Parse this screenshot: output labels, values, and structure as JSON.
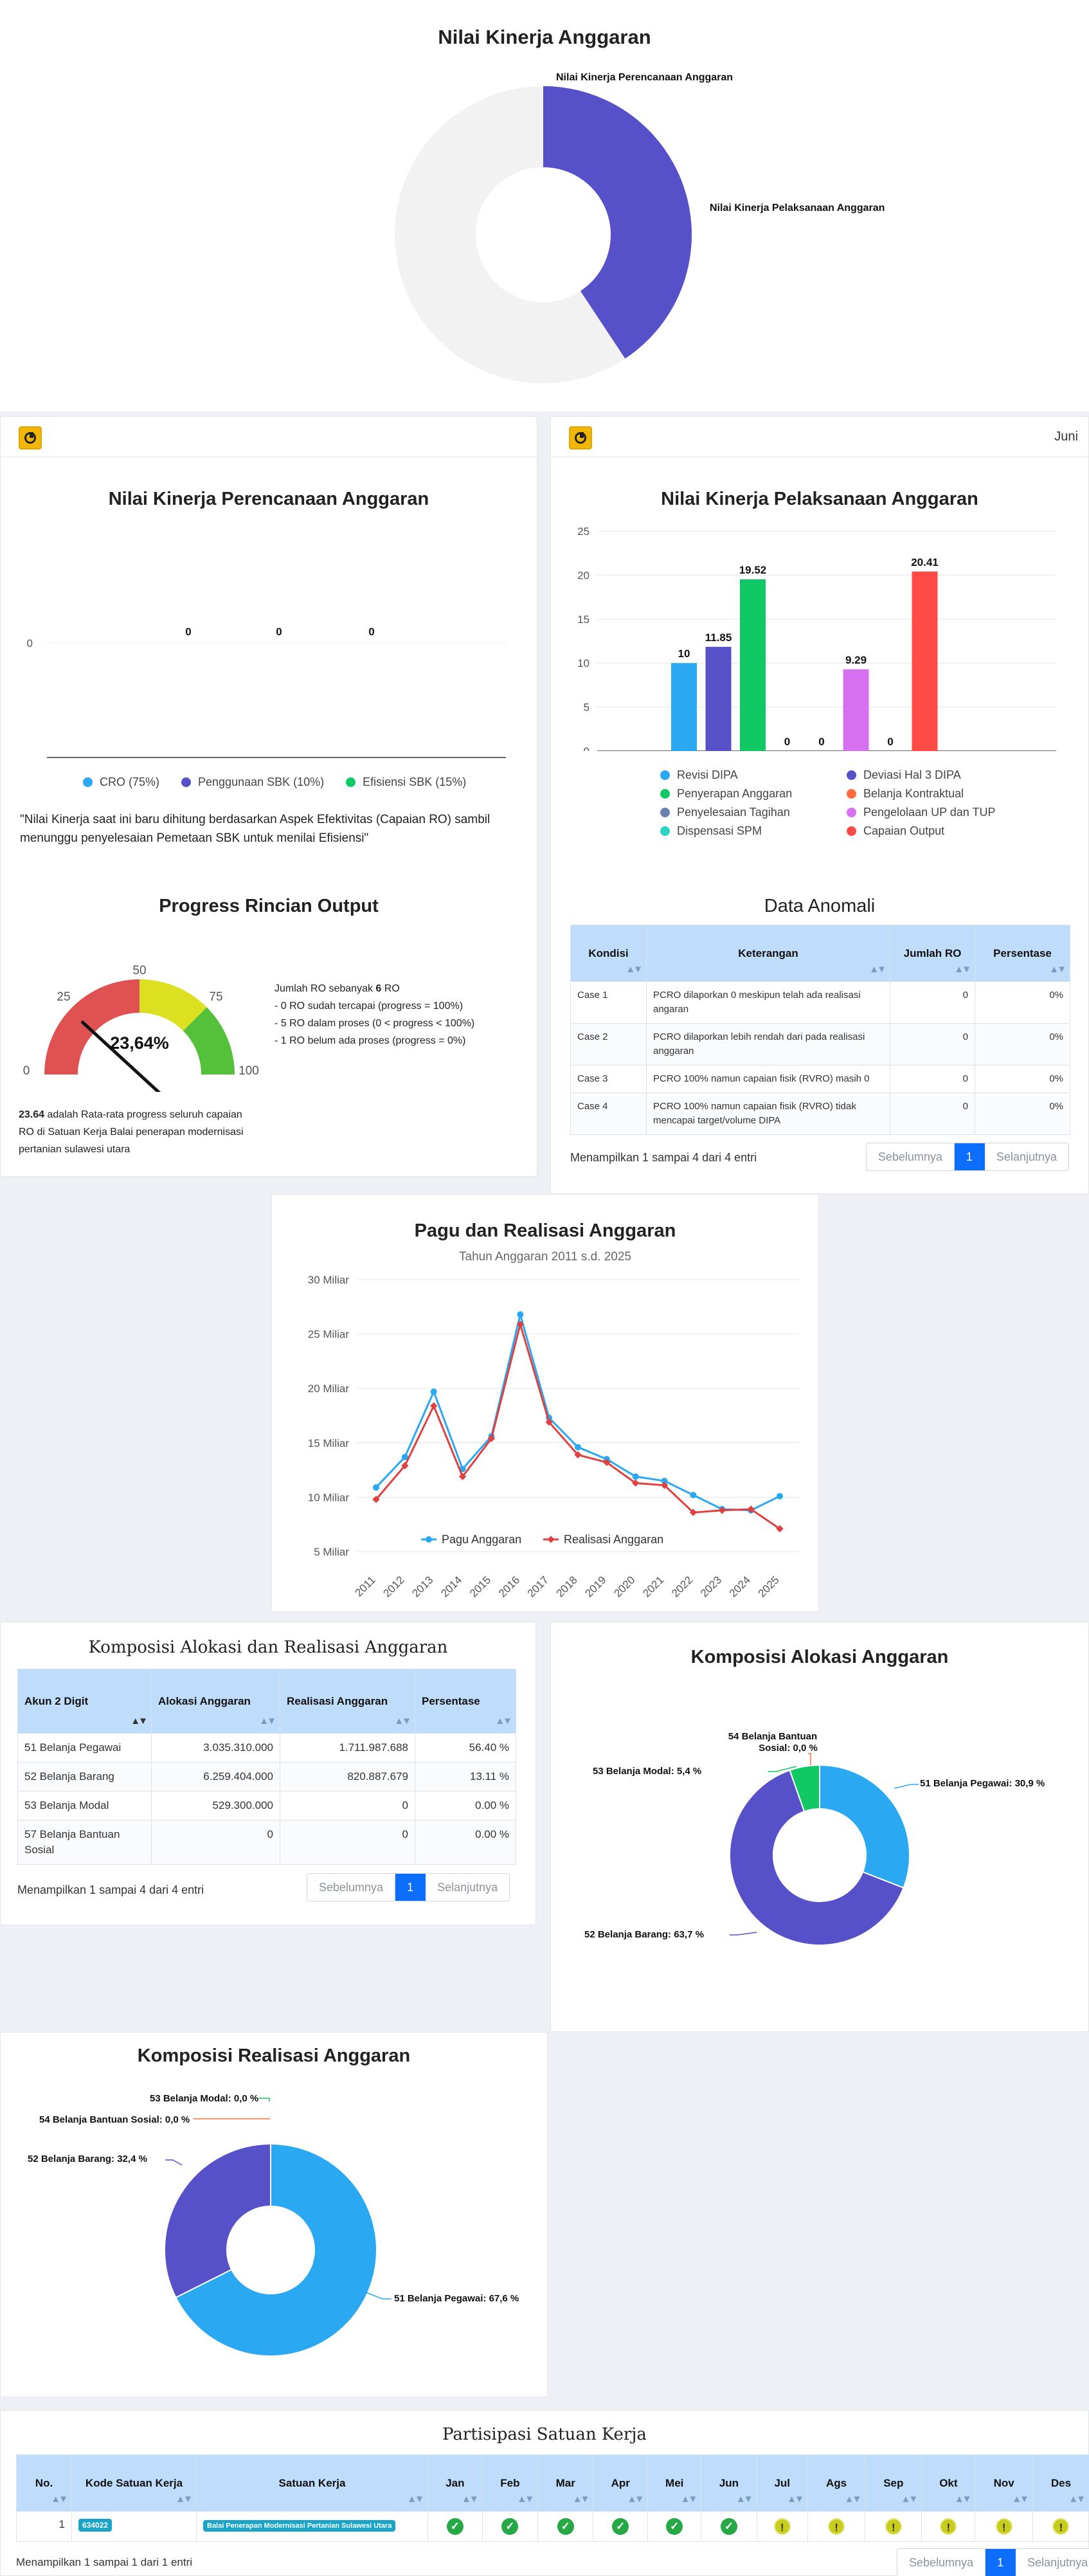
{
  "top_donut": {
    "title": "Nilai Kinerja Anggaran",
    "label_a": "Nilai Kinerja Perencanaan Anggaran",
    "label_b": "Nilai Kinerja Pelaksanaan Anggaran",
    "colors": {
      "filled": "#5650c9",
      "empty": "#f2f2f2"
    },
    "chart_data": {
      "type": "pie",
      "categories": [
        "Nilai Kinerja Perencanaan Anggaran",
        "Nilai Kinerja Pelaksanaan Anggaran"
      ],
      "values": [
        0,
        40.7
      ]
    }
  },
  "perencanaan": {
    "icon": "dashboard-icon",
    "title": "Nilai Kinerja Perencanaan Anggaran",
    "y_tick": "0",
    "bar_labels": [
      "0",
      "0",
      "0"
    ],
    "legend": [
      {
        "label": "CRO (75%)",
        "color": "#2aa8f2"
      },
      {
        "label": "Penggunaan SBK (10%)",
        "color": "#5650c9"
      },
      {
        "label": "Efisiensi SBK (15%)",
        "color": "#11c964"
      }
    ],
    "note": "\"Nilai Kinerja saat ini baru dihitung berdasarkan Aspek Efektivitas (Capaian RO) sambil menunggu penyelesaian Pemetaan SBK untuk menilai Efisiensi\"",
    "chart_data": {
      "type": "bar",
      "categories": [
        "CRO (75%)",
        "Penggunaan SBK (10%)",
        "Efisiensi SBK (15%)"
      ],
      "values": [
        0,
        0,
        0
      ]
    }
  },
  "pelaksanaan": {
    "icon": "dashboard-icon",
    "corner_text": "Juni",
    "title": "Nilai Kinerja Pelaksanaan Anggaran",
    "y_ticks": [
      "25",
      "20",
      "15",
      "10",
      "5",
      "0"
    ],
    "legend": [
      {
        "label": "Revisi DIPA",
        "color": "#2aa8f2"
      },
      {
        "label": "Deviasi Hal 3 DIPA",
        "color": "#5650c9"
      },
      {
        "label": "Penyerapan Anggaran",
        "color": "#11c964"
      },
      {
        "label": "Belanja Kontraktual",
        "color": "#ff6b3d"
      },
      {
        "label": "Penyelesaian Tagihan",
        "color": "#6b7fb0"
      },
      {
        "label": "Pengelolaan UP dan TUP",
        "color": "#d670f0"
      },
      {
        "label": "Dispensasi SPM",
        "color": "#2ed3c4"
      },
      {
        "label": "Capaian Output",
        "color": "#ff4b47"
      }
    ],
    "chart_data": {
      "type": "bar",
      "categories": [
        "Revisi DIPA",
        "Deviasi Hal 3 DIPA",
        "Penyerapan Anggaran",
        "Belanja Kontraktual",
        "Penyelesaian Tagihan",
        "Pengelolaan UP dan TUP",
        "Dispensasi SPM",
        "Capaian Output"
      ],
      "values": [
        10,
        11.85,
        19.52,
        0,
        0,
        9.29,
        0,
        20.41
      ],
      "value_labels": [
        "10",
        "11.85",
        "19.52",
        "0",
        "0",
        "9.29",
        "0",
        "20.41"
      ],
      "ylim": [
        0,
        25
      ]
    }
  },
  "progress": {
    "title": "Progress Rincian Output",
    "gauge_ticks": [
      "0",
      "25",
      "50",
      "75",
      "100"
    ],
    "value_text": "23,64%",
    "gauge_value": 23.64,
    "info_lines": [
      "Jumlah RO sebanyak",
      "6",
      "RO",
      "- 0 RO sudah tercapai (progress = 100%)",
      "- 5 RO dalam proses (0 < progress < 100%)",
      "- 1 RO belum ada proses (progress = 0%)"
    ],
    "footer_bold": "23.64",
    "footer_text": " adalah Rata-rata progress seluruh capaian RO di Satuan Kerja Balai penerapan modernisasi pertanian sulawesi utara"
  },
  "anomali": {
    "title": "Data Anomali",
    "headers": [
      "Kondisi",
      "Keterangan",
      "Jumlah RO",
      "Persentase"
    ],
    "rows": [
      [
        "Case 1",
        "PCRO dilaporkan 0 meskipun telah ada realisasi angaran",
        "0",
        "0%"
      ],
      [
        "Case 2",
        "PCRO dilaporkan lebih rendah dari pada realisasi anggaran",
        "0",
        "0%"
      ],
      [
        "Case 3",
        "PCRO 100% namun capaian fisik (RVRO) masih 0",
        "0",
        "0%"
      ],
      [
        "Case 4",
        "PCRO 100% namun capaian fisik (RVRO) tidak mencapai target/volume DIPA",
        "0",
        "0%"
      ]
    ],
    "info": "Menampilkan 1 sampai 4 dari 4 entri",
    "pager": [
      "Sebelumnya",
      "1",
      "Selanjutnya"
    ]
  },
  "pagu": {
    "title": "Pagu dan Realisasi Anggaran",
    "subtitle": "Tahun Anggaran 2011 s.d. 2025",
    "y_ticks": [
      "30 Miliar",
      "25 Miliar",
      "20 Miliar",
      "15 Miliar",
      "10 Miliar",
      "5 Miliar"
    ],
    "chart_data": {
      "type": "line",
      "x": [
        "2011",
        "2012",
        "2013",
        "2014",
        "2015",
        "2016",
        "2017",
        "2018",
        "2019",
        "2020",
        "2021",
        "2022",
        "2023",
        "2024",
        "2025"
      ],
      "series": [
        {
          "name": "Pagu Anggaran",
          "color": "#2aa8f2",
          "values": [
            10.9,
            13.7,
            19.7,
            12.6,
            15.6,
            26.8,
            17.3,
            14.6,
            13.5,
            11.9,
            11.5,
            10.2,
            8.9,
            8.8,
            10.1
          ]
        },
        {
          "name": "Realisasi Anggaran",
          "color": "#e0403f",
          "values": [
            9.8,
            12.9,
            18.4,
            11.9,
            15.4,
            25.9,
            16.9,
            13.9,
            13.2,
            11.3,
            11.1,
            8.6,
            8.8,
            8.9,
            7.1
          ]
        }
      ],
      "ylim": [
        5,
        30
      ]
    }
  },
  "komposisi_table": {
    "title": "Komposisi Alokasi dan Realisasi Anggaran",
    "headers": [
      "Akun 2 Digit",
      "Alokasi Anggaran",
      "Realisasi Anggaran",
      "Persentase"
    ],
    "rows": [
      [
        "51 Belanja Pegawai",
        "3.035.310.000",
        "1.711.987.688",
        "56.40 %"
      ],
      [
        "52 Belanja Barang",
        "6.259.404.000",
        "820.887.679",
        "13.11 %"
      ],
      [
        "53 Belanja Modal",
        "529.300.000",
        "0",
        "0.00 %"
      ],
      [
        "57 Belanja Bantuan Sosial",
        "0",
        "0",
        "0.00 %"
      ]
    ],
    "info": "Menampilkan 1 sampai 4 dari 4 entri",
    "pager": [
      "Sebelumnya",
      "1",
      "Selanjutnya"
    ]
  },
  "alokasi": {
    "title": "Komposisi Alokasi Anggaran",
    "labels": [
      "51 Belanja Pegawai: 30,9 %",
      "52 Belanja Barang: 63,7 %",
      "53 Belanja Modal: 5,4 %",
      "54 Belanja Bantuan",
      "Sosial: 0,0 %"
    ],
    "chart_data": {
      "type": "pie",
      "categories": [
        "51 Belanja Pegawai",
        "52 Belanja Barang",
        "53 Belanja Modal",
        "54 Belanja Bantuan Sosial"
      ],
      "values": [
        30.9,
        63.7,
        5.4,
        0.0
      ],
      "colors": [
        "#2aa8f2",
        "#5650c9",
        "#11c964",
        "#ff6b3d"
      ]
    }
  },
  "realisasi": {
    "title": "Komposisi Realisasi Anggaran",
    "labels": [
      "51 Belanja Pegawai: 67,6 %",
      "52 Belanja Barang: 32,4 %",
      "53 Belanja Modal: 0,0 %",
      "54 Belanja Bantuan Sosial: 0,0 %"
    ],
    "chart_data": {
      "type": "pie",
      "categories": [
        "51 Belanja Pegawai",
        "52 Belanja Barang",
        "53 Belanja Modal",
        "54 Belanja Bantuan Sosial"
      ],
      "values": [
        67.6,
        32.4,
        0.0,
        0.0
      ],
      "colors": [
        "#2aa8f2",
        "#5650c9",
        "#11c964",
        "#ff6b3d"
      ]
    }
  },
  "partisipasi": {
    "title": "Partisipasi Satuan Kerja",
    "headers": [
      "No.",
      "Kode Satuan Kerja",
      "Satuan Kerja",
      "Jan",
      "Feb",
      "Mar",
      "Apr",
      "Mei",
      "Jun",
      "Jul",
      "Ags",
      "Sep",
      "Okt",
      "Nov",
      "Des"
    ],
    "row": {
      "no": "1",
      "kode": "634022",
      "satker": "Balai Penerapan Modernisasi Pertanian Sulawesi Utara",
      "months": [
        "check",
        "check",
        "check",
        "check",
        "check",
        "check",
        "warn",
        "warn",
        "warn",
        "warn",
        "warn",
        "warn"
      ]
    },
    "info": "Menampilkan 1 sampai 1 dari 1 entri",
    "pager": [
      "Sebelumnya",
      "1",
      "Selanjutnya"
    ]
  }
}
